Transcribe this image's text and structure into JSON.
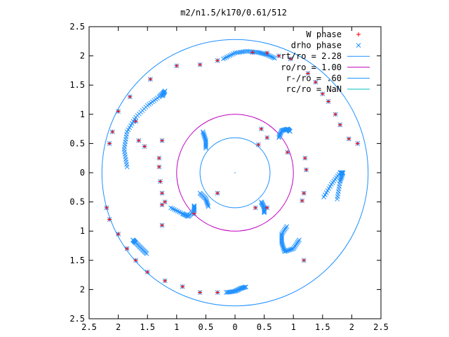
{
  "chart_data": {
    "type": "scatter",
    "title": "m2/n1.5/k170/0.61/512",
    "xlabel": "",
    "ylabel": "",
    "xlim": [
      -2.5,
      2.5
    ],
    "ylim": [
      -2.5,
      2.5
    ],
    "x_tick_labels": [
      "2.5",
      "2",
      "1.5",
      "1",
      "0.5",
      "0",
      "0.5",
      "1",
      "1.5",
      "2",
      "2.5"
    ],
    "y_tick_labels": [
      "2.5",
      "2",
      "1.5",
      "1",
      "0.5",
      "0",
      "0.5",
      "1",
      "1.5",
      "2",
      "2.5"
    ],
    "grid": false,
    "legend_position": "top-right",
    "origin_marker": [
      0,
      0
    ],
    "series": [
      {
        "name": "W phase",
        "marker": "plus",
        "color": "#ff0000",
        "points": [
          [
            0.3,
            2.06
          ],
          [
            0.55,
            2.05
          ],
          [
            0.75,
            2.0
          ],
          [
            0.95,
            1.95
          ],
          [
            1.25,
            1.7
          ],
          [
            1.38,
            1.55
          ],
          [
            1.5,
            1.35
          ],
          [
            1.6,
            1.22
          ],
          [
            1.72,
            1.0
          ],
          [
            1.8,
            0.82
          ],
          [
            1.95,
            0.58
          ],
          [
            2.1,
            0.5
          ],
          [
            -0.3,
            1.92
          ],
          [
            -0.6,
            1.85
          ],
          [
            -1.0,
            1.83
          ],
          [
            -1.45,
            1.6
          ],
          [
            -1.8,
            1.3
          ],
          [
            -2.0,
            1.05
          ],
          [
            -2.1,
            0.7
          ],
          [
            -2.15,
            0.5
          ],
          [
            -1.7,
            0.88
          ],
          [
            -1.65,
            0.55
          ],
          [
            -1.55,
            0.45
          ],
          [
            -1.25,
            0.55
          ],
          [
            -1.3,
            0.25
          ],
          [
            -1.3,
            0.1
          ],
          [
            -1.28,
            -0.15
          ],
          [
            -1.25,
            -0.35
          ],
          [
            -1.25,
            -0.55
          ],
          [
            0.45,
            0.75
          ],
          [
            0.4,
            0.48
          ],
          [
            0.55,
            0.6
          ],
          [
            0.9,
            0.35
          ],
          [
            1.2,
            0.25
          ],
          [
            1.22,
            0.05
          ],
          [
            1.18,
            -0.35
          ],
          [
            1.15,
            -0.48
          ],
          [
            1.18,
            -1.5
          ],
          [
            -0.3,
            -2.05
          ],
          [
            -0.6,
            -2.05
          ],
          [
            -0.9,
            -1.95
          ],
          [
            -1.2,
            -1.85
          ],
          [
            -1.5,
            -1.7
          ],
          [
            -1.7,
            -1.5
          ],
          [
            -1.85,
            -1.3
          ],
          [
            -2.0,
            -1.05
          ],
          [
            -2.15,
            -0.8
          ],
          [
            -2.2,
            -0.6
          ],
          [
            -1.25,
            -0.9
          ],
          [
            -1.2,
            -0.5
          ],
          [
            -0.3,
            -0.35
          ],
          [
            -0.7,
            -0.7
          ],
          [
            0.35,
            -0.6
          ],
          [
            0.55,
            -0.6
          ]
        ]
      },
      {
        "name": "drho phase",
        "marker": "cross",
        "color": "#1e90ff",
        "points": [
          [
            0.3,
            2.06
          ],
          [
            0.55,
            2.05
          ],
          [
            0.75,
            2.0
          ],
          [
            0.95,
            1.95
          ],
          [
            1.25,
            1.7
          ],
          [
            1.38,
            1.55
          ],
          [
            1.5,
            1.35
          ],
          [
            1.6,
            1.22
          ],
          [
            1.72,
            1.0
          ],
          [
            1.8,
            0.82
          ],
          [
            1.95,
            0.58
          ],
          [
            2.1,
            0.5
          ],
          [
            -0.3,
            1.92
          ],
          [
            -0.6,
            1.85
          ],
          [
            -1.0,
            1.83
          ],
          [
            -1.45,
            1.6
          ],
          [
            -1.8,
            1.3
          ],
          [
            -2.0,
            1.05
          ],
          [
            -2.1,
            0.7
          ],
          [
            -2.15,
            0.5
          ],
          [
            -1.7,
            0.88
          ],
          [
            -1.65,
            0.55
          ],
          [
            -1.55,
            0.45
          ],
          [
            -1.25,
            0.55
          ],
          [
            -1.3,
            0.25
          ],
          [
            -1.3,
            0.1
          ],
          [
            -1.28,
            -0.15
          ],
          [
            -1.25,
            -0.35
          ],
          [
            -1.25,
            -0.55
          ],
          [
            0.45,
            0.75
          ],
          [
            0.4,
            0.48
          ],
          [
            0.55,
            0.6
          ],
          [
            0.9,
            0.35
          ],
          [
            1.2,
            0.25
          ],
          [
            1.22,
            0.05
          ],
          [
            1.18,
            -0.35
          ],
          [
            1.15,
            -0.48
          ],
          [
            1.18,
            -1.5
          ],
          [
            -0.3,
            -2.05
          ],
          [
            -0.6,
            -2.05
          ],
          [
            -0.9,
            -1.95
          ],
          [
            -1.2,
            -1.85
          ],
          [
            -1.5,
            -1.7
          ],
          [
            -1.7,
            -1.5
          ],
          [
            -1.85,
            -1.3
          ],
          [
            -2.0,
            -1.05
          ],
          [
            -2.15,
            -0.8
          ],
          [
            -2.2,
            -0.6
          ],
          [
            -1.25,
            -0.9
          ],
          [
            -1.2,
            -0.5
          ],
          [
            -0.3,
            -0.35
          ],
          [
            -0.7,
            -0.7
          ],
          [
            0.35,
            -0.6
          ],
          [
            0.55,
            -0.6
          ]
        ],
        "dense_arcs": [
          {
            "x": [
              -1.85,
              -1.9,
              -1.85,
              -1.7,
              -1.5,
              -1.3,
              -1.2,
              -1.25
            ],
            "y": [
              0.1,
              0.4,
              0.7,
              0.95,
              1.15,
              1.3,
              1.4,
              1.3
            ]
          },
          {
            "x": [
              -0.2,
              0.0,
              0.2,
              0.4,
              0.55,
              0.7
            ],
            "y": [
              1.95,
              2.05,
              2.08,
              2.06,
              2.02,
              1.95
            ]
          },
          {
            "x": [
              0.75,
              0.8,
              0.9,
              0.95
            ],
            "y": [
              0.6,
              0.72,
              0.75,
              0.7
            ]
          },
          {
            "x": [
              -0.55,
              -0.5,
              -0.5
            ],
            "y": [
              0.7,
              0.55,
              0.4
            ]
          },
          {
            "x": [
              1.75,
              1.8,
              1.85,
              1.8,
              1.65,
              1.5
            ],
            "y": [
              -0.45,
              -0.15,
              0.0,
              0.0,
              -0.2,
              -0.45
            ]
          },
          {
            "x": [
              1.1,
              1.0,
              0.85,
              0.8,
              0.8,
              0.9
            ],
            "y": [
              -1.15,
              -1.3,
              -1.35,
              -1.2,
              -1.05,
              -0.9
            ]
          },
          {
            "x": [
              -0.6,
              -0.5,
              -0.45
            ],
            "y": [
              -0.35,
              -0.45,
              -0.6
            ]
          },
          {
            "x": [
              -1.1,
              -0.9,
              -0.8,
              -0.7,
              -0.7
            ],
            "y": [
              -0.6,
              -0.7,
              -0.75,
              -0.65,
              -0.55
            ]
          },
          {
            "x": [
              0.45,
              0.5,
              0.5
            ],
            "y": [
              -0.5,
              -0.6,
              -0.7
            ]
          },
          {
            "x": [
              -0.15,
              0.0,
              0.1,
              0.2
            ],
            "y": [
              -2.05,
              -2.03,
              -1.98,
              -1.95
            ]
          },
          {
            "x": [
              -1.75,
              -1.7,
              -1.6,
              -1.5
            ],
            "y": [
              -1.15,
              -1.2,
              -1.3,
              -1.4
            ]
          }
        ]
      },
      {
        "name": "rt/ro = 2.28",
        "kind": "circle",
        "radius": 2.28,
        "color": "#1e90ff"
      },
      {
        "name": "ro/ro = 1.00",
        "kind": "circle",
        "radius": 1.0,
        "color": "#c000c0"
      },
      {
        "name": "r-/ro = .60",
        "kind": "circle",
        "radius": 0.6,
        "color": "#1e90ff"
      },
      {
        "name": "rc/ro = NaN",
        "kind": "circle",
        "radius": null,
        "color": "#00c0c0"
      }
    ]
  }
}
